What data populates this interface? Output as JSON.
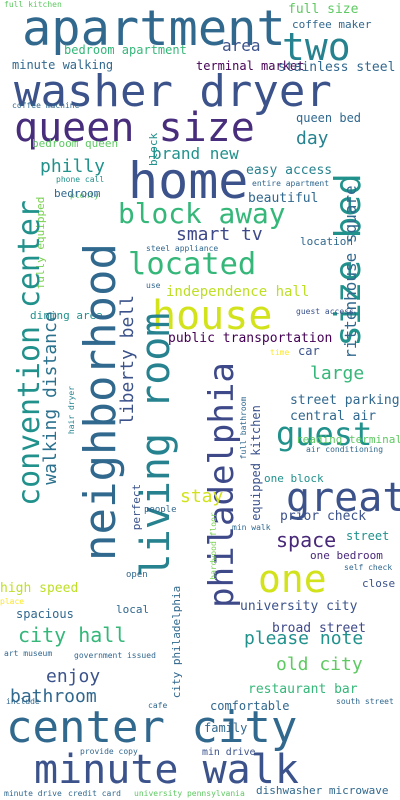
{
  "words": [
    {
      "text": "full kitchen",
      "color": "#5ec962"
    },
    {
      "text": "apartment",
      "color": "#31688e"
    },
    {
      "text": "full size",
      "color": "#5ec962"
    },
    {
      "text": "coffee maker",
      "color": "#31688e"
    },
    {
      "text": "two",
      "color": "#26828e"
    },
    {
      "text": "area",
      "color": "#3b528b"
    },
    {
      "text": "bedroom apartment",
      "color": "#35b779"
    },
    {
      "text": "minute walking",
      "color": "#31688e"
    },
    {
      "text": "terminal market",
      "color": "#440154"
    },
    {
      "text": "stainless steel",
      "color": "#31688e"
    },
    {
      "text": "washer dryer",
      "color": "#3b528b"
    },
    {
      "text": "coffee machine",
      "color": "#31688e"
    },
    {
      "text": "queen size",
      "color": "#472d7b"
    },
    {
      "text": "queen bed",
      "color": "#31688e"
    },
    {
      "text": "day",
      "color": "#26828e"
    },
    {
      "text": "bedroom queen",
      "color": "#5ec962"
    },
    {
      "text": "block",
      "color": "#21918c"
    },
    {
      "text": "brand new",
      "color": "#21918c"
    },
    {
      "text": "home",
      "color": "#3b528b"
    },
    {
      "text": "philly",
      "color": "#21918c"
    },
    {
      "text": "easy access",
      "color": "#26828e"
    },
    {
      "text": "phone call",
      "color": "#21918c"
    },
    {
      "text": "entire apartment",
      "color": "#31688e"
    },
    {
      "text": "plenty",
      "color": "#5ec962"
    },
    {
      "text": "bedroom",
      "color": "#31688e"
    },
    {
      "text": "beautiful",
      "color": "#31688e"
    },
    {
      "text": "block away",
      "color": "#35b779"
    },
    {
      "text": "size bed",
      "color": "#21918c"
    },
    {
      "text": "smart tv",
      "color": "#3e4989"
    },
    {
      "text": "rittenhouse square",
      "color": "#31688e"
    },
    {
      "text": "location",
      "color": "#31688e"
    },
    {
      "text": "fully equipped",
      "color": "#7ad151"
    },
    {
      "text": "steel appliance",
      "color": "#31688e"
    },
    {
      "text": "located",
      "color": "#35b779"
    },
    {
      "text": "independence hall",
      "color": "#bddf26"
    },
    {
      "text": "use",
      "color": "#31688e"
    },
    {
      "text": "house",
      "color": "#d2e21b"
    },
    {
      "text": "guest access",
      "color": "#3b528b"
    },
    {
      "text": "dining area",
      "color": "#21918c"
    },
    {
      "text": "public transportation",
      "color": "#440154"
    },
    {
      "text": "convention center",
      "color": "#21918c"
    },
    {
      "text": "walking distance",
      "color": "#2c728e"
    },
    {
      "text": "liberty bell",
      "color": "#3b528b"
    },
    {
      "text": "car",
      "color": "#3b528b"
    },
    {
      "text": "time",
      "color": "#fde725"
    },
    {
      "text": "neighborhood",
      "color": "#31688e"
    },
    {
      "text": "living room",
      "color": "#26828e"
    },
    {
      "text": "philadelphia",
      "color": "#3e4989"
    },
    {
      "text": "large",
      "color": "#35b779"
    },
    {
      "text": "street parking",
      "color": "#31688e"
    },
    {
      "text": "full bathroom",
      "color": "#31688e"
    },
    {
      "text": "hair dryer",
      "color": "#26828e"
    },
    {
      "text": "central air",
      "color": "#31688e"
    },
    {
      "text": "air conditioning",
      "color": "#31688e"
    },
    {
      "text": "guest",
      "color": "#21918c"
    },
    {
      "text": "equipped kitchen",
      "color": "#3b528b"
    },
    {
      "text": "reading terminal",
      "color": "#5ec962"
    },
    {
      "text": "one block",
      "color": "#21918c"
    },
    {
      "text": "stay",
      "color": "#d2e21b"
    },
    {
      "text": "great",
      "color": "#3b528b"
    },
    {
      "text": "perfect",
      "color": "#3b528b"
    },
    {
      "text": "people",
      "color": "#31688e"
    },
    {
      "text": "hardwood floor",
      "color": "#7ad151"
    },
    {
      "text": "prior check",
      "color": "#3b528b"
    },
    {
      "text": "min walk",
      "color": "#31688e"
    },
    {
      "text": "space",
      "color": "#482878"
    },
    {
      "text": "street",
      "color": "#21918c"
    },
    {
      "text": "one bedroom",
      "color": "#482878"
    },
    {
      "text": "self check",
      "color": "#31688e"
    },
    {
      "text": "one",
      "color": "#d2e21b"
    },
    {
      "text": "high speed",
      "color": "#bddf26"
    },
    {
      "text": "open",
      "color": "#31688e"
    },
    {
      "text": "close",
      "color": "#3b528b"
    },
    {
      "text": "place",
      "color": "#fde725"
    },
    {
      "text": "spacious",
      "color": "#31688e"
    },
    {
      "text": "local",
      "color": "#31688e"
    },
    {
      "text": "city philadelphia",
      "color": "#31688e"
    },
    {
      "text": "university city",
      "color": "#3b528b"
    },
    {
      "text": "city hall",
      "color": "#35b779"
    },
    {
      "text": "broad street",
      "color": "#3e4989"
    },
    {
      "text": "please note",
      "color": "#21918c"
    },
    {
      "text": "art museum",
      "color": "#31688e"
    },
    {
      "text": "government issued",
      "color": "#31688e"
    },
    {
      "text": "old city",
      "color": "#5ec962"
    },
    {
      "text": "enjoy",
      "color": "#3b528b"
    },
    {
      "text": "restaurant bar",
      "color": "#35b779"
    },
    {
      "text": "bathroom",
      "color": "#31688e"
    },
    {
      "text": "include",
      "color": "#31688e"
    },
    {
      "text": "cafe",
      "color": "#31688e"
    },
    {
      "text": "comfortable",
      "color": "#31688e"
    },
    {
      "text": "south street",
      "color": "#31688e"
    },
    {
      "text": "family",
      "color": "#31688e"
    },
    {
      "text": "center city",
      "color": "#31688e"
    },
    {
      "text": "provide copy",
      "color": "#31688e"
    },
    {
      "text": "min drive",
      "color": "#3b528b"
    },
    {
      "text": "minute walk",
      "color": "#3b528b"
    },
    {
      "text": "minute drive",
      "color": "#31688e"
    },
    {
      "text": "credit card",
      "color": "#31688e"
    },
    {
      "text": "university pennsylvania",
      "color": "#5ec962"
    },
    {
      "text": "dishwasher microwave",
      "color": "#31688e"
    }
  ]
}
